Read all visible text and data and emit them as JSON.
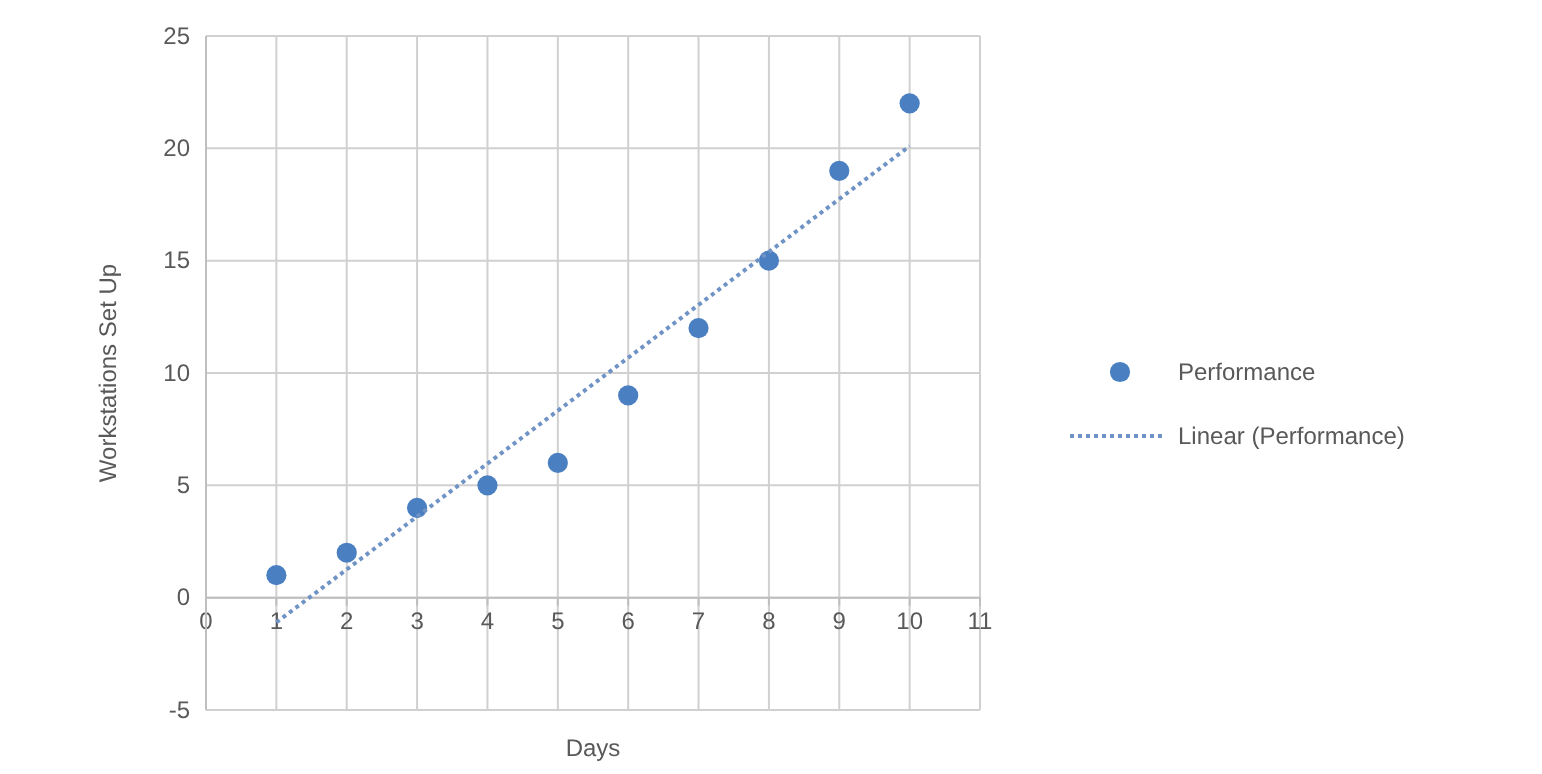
{
  "chart_data": {
    "type": "scatter",
    "xlabel": "Days",
    "ylabel": "Workstations Set Up",
    "xlim": [
      0,
      11
    ],
    "xticks": [
      0,
      1,
      2,
      3,
      4,
      5,
      6,
      7,
      8,
      9,
      10,
      11
    ],
    "ylim": [
      -5,
      25
    ],
    "yticks": [
      -5,
      0,
      5,
      10,
      15,
      20,
      25
    ],
    "grid": true,
    "legend": "right",
    "series": [
      {
        "name": "Performance",
        "color": "#4a7fc1",
        "marker": "circle",
        "x": [
          1,
          2,
          3,
          4,
          5,
          6,
          7,
          8,
          9,
          10
        ],
        "values": [
          1,
          2,
          4,
          5,
          6,
          9,
          12,
          15,
          19,
          22
        ]
      },
      {
        "name": "Linear (Performance)",
        "type": "line",
        "color": "#6f93c4",
        "line_style": "dotted",
        "marker": "none",
        "x": [
          1,
          10
        ],
        "values": [
          -1.1,
          20.1
        ]
      }
    ]
  }
}
